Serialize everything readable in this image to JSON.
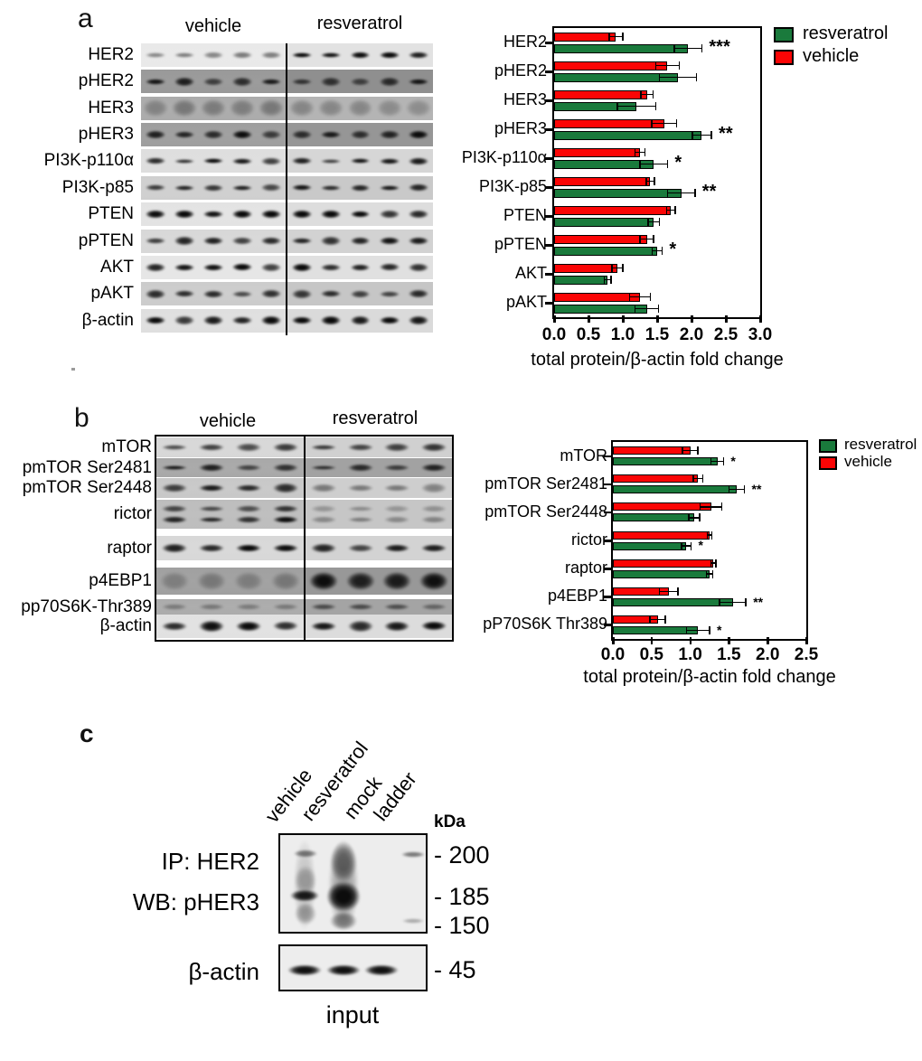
{
  "panel_a": {
    "letter": "a",
    "blot": {
      "headers": {
        "vehicle": "vehicle",
        "resveratrol": "resveratrol"
      },
      "row_labels": [
        "HER2",
        "pHER2",
        "HER3",
        "pHER3",
        "PI3K-p110α",
        "PI3K-p85",
        "PTEN",
        "pPTEN",
        "AKT",
        "pAKT",
        "β-actin"
      ],
      "lanes_per_side": 5
    }
  },
  "panel_b": {
    "letter": "b",
    "blot": {
      "headers": {
        "vehicle": "vehicle",
        "resveratrol": "resveratrol"
      },
      "row_labels": [
        "mTOR",
        "pmTOR Ser2481",
        "pmTOR Ser2448",
        "rictor",
        "raptor",
        "p4EBP1",
        "pp70S6K-Thr389",
        "β-actin"
      ],
      "lanes_per_side": 4
    }
  },
  "panel_c": {
    "letter": "c",
    "lane_labels": [
      "vehicle",
      "resveratrol",
      "mock",
      "ladder"
    ],
    "unit_label": "kDa",
    "ip_label": "IP: HER2",
    "wb_label": "WB: pHER3",
    "actin_label": "β-actin",
    "markers": [
      "- 200",
      "- 185",
      "- 150"
    ],
    "actin_marker": "- 45",
    "caption": "input"
  },
  "chart_data": [
    {
      "panel": "a",
      "type": "bar",
      "orientation": "horizontal",
      "title": "",
      "xlabel": "total protein/β-actin fold change",
      "ylabel": "",
      "xlim": [
        0.0,
        3.0
      ],
      "xticks": [
        "0.0",
        "0.5",
        "1.0",
        "1.5",
        "2.0",
        "2.5",
        "3.0"
      ],
      "grid": false,
      "legend_position": "upper right outside",
      "categories": [
        "HER2",
        "pHER2",
        "HER3",
        "pHER3",
        "PI3K-p110α",
        "PI3K-p85",
        "PTEN",
        "pPTEN",
        "AKT",
        "pAKT"
      ],
      "series": [
        {
          "name": "vehicle",
          "color": "#fb0505",
          "values": [
            0.9,
            1.65,
            1.35,
            1.6,
            1.25,
            1.4,
            1.7,
            1.35,
            0.92,
            1.25
          ],
          "errors": [
            0.1,
            0.17,
            0.09,
            0.18,
            0.07,
            0.06,
            0.06,
            0.1,
            0.08,
            0.15
          ]
        },
        {
          "name": "resveratrol",
          "color": "#1a7a3c",
          "values": [
            1.95,
            1.8,
            1.2,
            2.15,
            1.45,
            1.85,
            1.45,
            1.5,
            0.78,
            1.35
          ],
          "errors": [
            0.2,
            0.27,
            0.28,
            0.14,
            0.2,
            0.2,
            0.08,
            0.07,
            0.05,
            0.17
          ]
        }
      ],
      "bar_order_top_to_bottom": [
        "vehicle",
        "resveratrol"
      ],
      "significance": [
        "***",
        "",
        "",
        "**",
        "*",
        "**",
        "",
        "*",
        "",
        ""
      ],
      "legend": [
        {
          "label": "resveratrol",
          "color": "#1a7a3c"
        },
        {
          "label": "vehicle",
          "color": "#fb0505"
        }
      ]
    },
    {
      "panel": "b",
      "type": "bar",
      "orientation": "horizontal",
      "title": "",
      "xlabel": "total protein/β-actin fold change",
      "ylabel": "",
      "xlim": [
        0.0,
        2.5
      ],
      "xticks": [
        "0.0",
        "0.5",
        "1.0",
        "1.5",
        "2.0",
        "2.5"
      ],
      "grid": false,
      "legend_position": "upper right outside",
      "categories": [
        "mTOR",
        "pmTOR Ser2481",
        "pmTOR Ser2448",
        "rictor",
        "raptor",
        "p4EBP1",
        "pP70S6K Thr389"
      ],
      "series": [
        {
          "name": "vehicle",
          "color": "#fb0505",
          "values": [
            1.0,
            1.1,
            1.27,
            1.25,
            1.3,
            0.72,
            0.58
          ],
          "errors": [
            0.1,
            0.06,
            0.14,
            0.03,
            0.03,
            0.12,
            0.1
          ]
        },
        {
          "name": "resveratrol",
          "color": "#1a7a3c",
          "values": [
            1.35,
            1.6,
            1.05,
            0.95,
            1.25,
            1.55,
            1.1
          ],
          "errors": [
            0.08,
            0.1,
            0.07,
            0.06,
            0.04,
            0.17,
            0.15
          ]
        }
      ],
      "bar_order_top_to_bottom": [
        "vehicle",
        "resveratrol"
      ],
      "significance": [
        "*",
        "**",
        "",
        "*",
        "",
        "**",
        "*"
      ],
      "legend": [
        {
          "label": "resveratrol",
          "color": "#1a7a3c"
        },
        {
          "label": "vehicle",
          "color": "#fb0505"
        }
      ]
    }
  ]
}
